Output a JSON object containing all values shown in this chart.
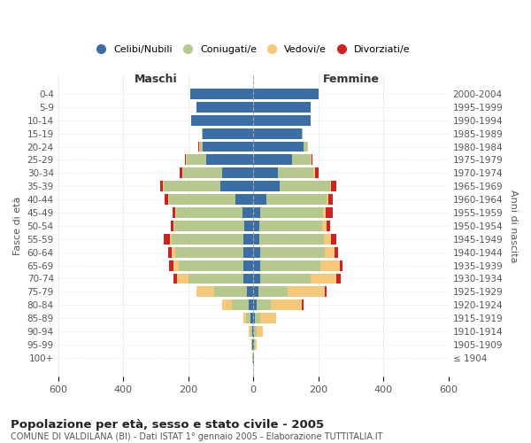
{
  "age_groups": [
    "100+",
    "95-99",
    "90-94",
    "85-89",
    "80-84",
    "75-79",
    "70-74",
    "65-69",
    "60-64",
    "55-59",
    "50-54",
    "45-49",
    "40-44",
    "35-39",
    "30-34",
    "25-29",
    "20-24",
    "15-19",
    "10-14",
    "5-9",
    "0-4"
  ],
  "birth_years": [
    "≤ 1904",
    "1905-1909",
    "1910-1914",
    "1915-1919",
    "1920-1924",
    "1925-1929",
    "1930-1934",
    "1935-1939",
    "1940-1944",
    "1945-1949",
    "1950-1954",
    "1955-1959",
    "1960-1964",
    "1965-1969",
    "1970-1974",
    "1975-1979",
    "1980-1984",
    "1985-1989",
    "1990-1994",
    "1995-1999",
    "2000-2004"
  ],
  "male_celibi": [
    1,
    2,
    4,
    8,
    15,
    20,
    30,
    30,
    30,
    30,
    28,
    32,
    55,
    100,
    95,
    145,
    155,
    155,
    190,
    175,
    195
  ],
  "male_coniugati": [
    1,
    3,
    6,
    15,
    50,
    100,
    170,
    200,
    210,
    220,
    215,
    205,
    205,
    175,
    120,
    60,
    10,
    3,
    2,
    0,
    0
  ],
  "male_vedovi": [
    0,
    1,
    3,
    8,
    30,
    55,
    35,
    15,
    10,
    5,
    2,
    2,
    2,
    2,
    2,
    2,
    2,
    0,
    0,
    0,
    0
  ],
  "male_divorziati": [
    0,
    0,
    0,
    0,
    0,
    0,
    10,
    15,
    12,
    20,
    8,
    8,
    10,
    10,
    8,
    3,
    2,
    0,
    0,
    0,
    0
  ],
  "female_celibi": [
    1,
    2,
    3,
    5,
    10,
    15,
    20,
    20,
    20,
    18,
    18,
    20,
    40,
    80,
    75,
    120,
    155,
    150,
    175,
    175,
    200
  ],
  "female_coniugati": [
    1,
    3,
    6,
    15,
    45,
    90,
    155,
    185,
    200,
    200,
    195,
    195,
    185,
    155,
    110,
    55,
    10,
    3,
    2,
    0,
    0
  ],
  "female_vedovi": [
    1,
    5,
    20,
    50,
    95,
    115,
    80,
    60,
    30,
    20,
    12,
    8,
    5,
    5,
    5,
    3,
    2,
    0,
    0,
    0,
    0
  ],
  "female_divorziati": [
    0,
    0,
    0,
    0,
    5,
    5,
    15,
    10,
    12,
    18,
    10,
    20,
    15,
    15,
    12,
    5,
    2,
    0,
    0,
    0,
    0
  ],
  "colors": {
    "celibi": "#3a6ea5",
    "coniugati": "#b5c98e",
    "vedovi": "#f5c87a",
    "divorziati": "#cc2222"
  },
  "title": "Popolazione per età, sesso e stato civile - 2005",
  "subtitle": "COMUNE DI VALDILANA (BI) - Dati ISTAT 1° gennaio 2005 - Elaborazione TUTTITALIA.IT",
  "xlabel_left": "Maschi",
  "xlabel_right": "Femmine",
  "ylabel_left": "Fasce di età",
  "ylabel_right": "Anni di nascita",
  "xlim": 600,
  "background_color": "#ffffff",
  "grid_color": "#cccccc",
  "bar_height": 0.8
}
